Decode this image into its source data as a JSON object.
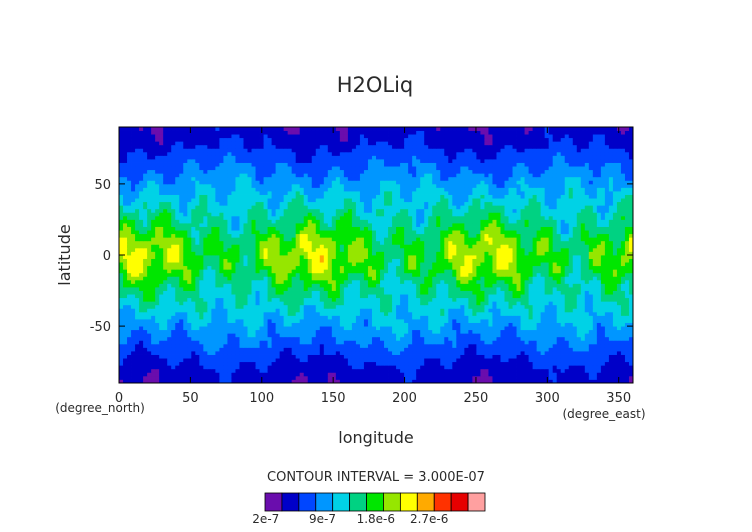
{
  "chart_data": {
    "type": "heatmap",
    "title": "H2OLiq",
    "xlabel": "longitude",
    "ylabel": "latitude",
    "x_units": "(degree_east)",
    "y_units": "(degree_north)",
    "xlim": [
      0,
      360
    ],
    "ylim": [
      -90,
      90
    ],
    "x_ticks": [
      "0",
      "50",
      "100",
      "150",
      "200",
      "250",
      "300",
      "350"
    ],
    "y_ticks": [
      "50",
      "0",
      "-50"
    ],
    "x_tick_values": [
      0,
      50,
      100,
      150,
      200,
      250,
      300,
      350
    ],
    "y_tick_values": [
      50,
      0,
      -50
    ],
    "contour_interval_text": "CONTOUR INTERVAL = 3.000E-07",
    "colorbar": {
      "levels": [
        2e-07,
        5e-07,
        8e-07,
        1.1e-06,
        1.4e-06,
        1.7e-06,
        2e-06,
        2.3e-06,
        2.6e-06,
        2.9e-06,
        3.2e-06
      ],
      "colors": [
        "#6a0dad",
        "#0000c8",
        "#0046ff",
        "#0096ff",
        "#00d2e6",
        "#00d282",
        "#00e600",
        "#96e600",
        "#ffff00",
        "#ffaa00",
        "#ff3200",
        "#e60000",
        "#ffa0a0"
      ],
      "tick_labels": [
        "2e-7",
        "9e-7",
        "1.8e-6",
        "2.7e-6"
      ]
    },
    "zonal_mean_by_latitude": {
      "lat": [
        -90,
        -80,
        -70,
        -60,
        -50,
        -40,
        -30,
        -20,
        -10,
        0,
        10,
        20,
        30,
        40,
        50,
        60,
        70,
        80,
        90
      ],
      "value": [
        3e-07,
        4e-07,
        6e-07,
        8e-07,
        1e-06,
        1.2e-06,
        1.4e-06,
        1.6e-06,
        1.9e-06,
        2e-06,
        1.9e-06,
        1.6e-06,
        1.4e-06,
        1.2e-06,
        1e-06,
        8e-07,
        6e-07,
        4e-07,
        3e-07
      ]
    },
    "grid": false
  }
}
